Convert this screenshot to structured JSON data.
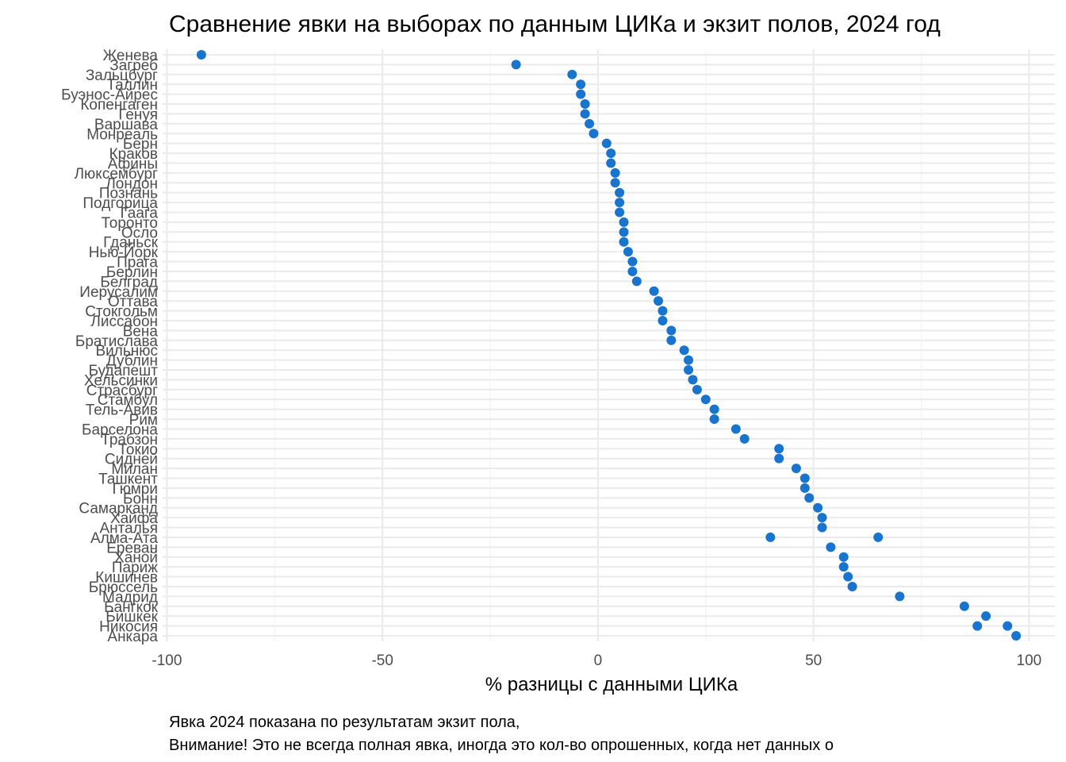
{
  "chart_data": {
    "type": "scatter",
    "title": "Сравнение явки на выборах по данным ЦИКа и экзит полов, 2024 год",
    "xlabel": "% разницы с данными ЦИКа",
    "ylabel": "",
    "xlim": [
      -101,
      106
    ],
    "xticks": [
      -100,
      -50,
      0,
      50,
      100
    ],
    "xtick_labels": [
      "-100",
      "-50",
      "0",
      "50",
      "100"
    ],
    "grid": true,
    "point_color": "#1874CD",
    "caption_lines": [
      "Явка 2024 показана по результатам экзит пола,",
      "Внимание! Это не всегда полная явка, иногда это кол-во опрошенных, когда нет данных о"
    ],
    "categories": [
      "Женева",
      "Загреб",
      "Зальцбург",
      "Таллин",
      "Буэнос-Айрес",
      "Копенгаген",
      "Генуя",
      "Варшава",
      "Монреаль",
      "Берн",
      "Краков",
      "Афины",
      "Люксембург",
      "Лондон",
      "Познань",
      "Подгорица",
      "Гаага",
      "Торонто",
      "Осло",
      "Гданьск",
      "Нью-Йорк",
      "Прага",
      "Берлин",
      "Белград",
      "Иерусалим",
      "Оттава",
      "Стокгольм",
      "Лиссабон",
      "Вена",
      "Братислава",
      "Вильнюс",
      "Дублин",
      "Будапешт",
      "Хельсинки",
      "Страсбург",
      "Стамбул",
      "Тель-Авив",
      "Рим",
      "Барселона",
      "Трабзон",
      "Токио",
      "Сидней",
      "Милан",
      "Ташкент",
      "Гюмри",
      "Бонн",
      "Самарканд",
      "Хайфа",
      "Анталья",
      "Алма-Ата",
      "Ереван",
      "Ханой",
      "Париж",
      "Кишинев",
      "Брюссель",
      "Мадрид",
      "Бангкок",
      "Бишкек",
      "Никосия",
      "Анкара"
    ],
    "points": [
      {
        "city": "Женева",
        "x": [
          -92
        ]
      },
      {
        "city": "Загреб",
        "x": [
          -19
        ]
      },
      {
        "city": "Зальцбург",
        "x": [
          -6
        ]
      },
      {
        "city": "Таллин",
        "x": [
          -4
        ]
      },
      {
        "city": "Буэнос-Айрес",
        "x": [
          -4
        ]
      },
      {
        "city": "Копенгаген",
        "x": [
          -3
        ]
      },
      {
        "city": "Генуя",
        "x": [
          -3
        ]
      },
      {
        "city": "Варшава",
        "x": [
          -2
        ]
      },
      {
        "city": "Монреаль",
        "x": [
          -1
        ]
      },
      {
        "city": "Берн",
        "x": [
          2
        ]
      },
      {
        "city": "Краков",
        "x": [
          3
        ]
      },
      {
        "city": "Афины",
        "x": [
          3
        ]
      },
      {
        "city": "Люксембург",
        "x": [
          4
        ]
      },
      {
        "city": "Лондон",
        "x": [
          4
        ]
      },
      {
        "city": "Познань",
        "x": [
          5
        ]
      },
      {
        "city": "Подгорица",
        "x": [
          5
        ]
      },
      {
        "city": "Гаага",
        "x": [
          5
        ]
      },
      {
        "city": "Торонто",
        "x": [
          6
        ]
      },
      {
        "city": "Осло",
        "x": [
          6
        ]
      },
      {
        "city": "Гданьск",
        "x": [
          6
        ]
      },
      {
        "city": "Нью-Йорк",
        "x": [
          7
        ]
      },
      {
        "city": "Прага",
        "x": [
          8
        ]
      },
      {
        "city": "Берлин",
        "x": [
          8
        ]
      },
      {
        "city": "Белград",
        "x": [
          9
        ]
      },
      {
        "city": "Иерусалим",
        "x": [
          13
        ]
      },
      {
        "city": "Оттава",
        "x": [
          14
        ]
      },
      {
        "city": "Стокгольм",
        "x": [
          15
        ]
      },
      {
        "city": "Лиссабон",
        "x": [
          15
        ]
      },
      {
        "city": "Вена",
        "x": [
          17
        ]
      },
      {
        "city": "Братислава",
        "x": [
          17
        ]
      },
      {
        "city": "Вильнюс",
        "x": [
          20
        ]
      },
      {
        "city": "Дублин",
        "x": [
          21
        ]
      },
      {
        "city": "Будапешт",
        "x": [
          21
        ]
      },
      {
        "city": "Хельсинки",
        "x": [
          22
        ]
      },
      {
        "city": "Страсбург",
        "x": [
          23
        ]
      },
      {
        "city": "Стамбул",
        "x": [
          25
        ]
      },
      {
        "city": "Тель-Авив",
        "x": [
          27
        ]
      },
      {
        "city": "Рим",
        "x": [
          27
        ]
      },
      {
        "city": "Барселона",
        "x": [
          32
        ]
      },
      {
        "city": "Трабзон",
        "x": [
          34
        ]
      },
      {
        "city": "Токио",
        "x": [
          42
        ]
      },
      {
        "city": "Сидней",
        "x": [
          42
        ]
      },
      {
        "city": "Милан",
        "x": [
          46
        ]
      },
      {
        "city": "Ташкент",
        "x": [
          48
        ]
      },
      {
        "city": "Гюмри",
        "x": [
          48
        ]
      },
      {
        "city": "Бонн",
        "x": [
          49
        ]
      },
      {
        "city": "Самарканд",
        "x": [
          51
        ]
      },
      {
        "city": "Хайфа",
        "x": [
          52
        ]
      },
      {
        "city": "Анталья",
        "x": [
          52
        ]
      },
      {
        "city": "Алма-Ата",
        "x": [
          40,
          65
        ]
      },
      {
        "city": "Ереван",
        "x": [
          54
        ]
      },
      {
        "city": "Ханой",
        "x": [
          57
        ]
      },
      {
        "city": "Париж",
        "x": [
          57
        ]
      },
      {
        "city": "Кишинев",
        "x": [
          58
        ]
      },
      {
        "city": "Брюссель",
        "x": [
          59
        ]
      },
      {
        "city": "Мадрид",
        "x": [
          70
        ]
      },
      {
        "city": "Бангкок",
        "x": [
          85
        ]
      },
      {
        "city": "Бишкек",
        "x": [
          90
        ]
      },
      {
        "city": "Никосия",
        "x": [
          88,
          95
        ]
      },
      {
        "city": "Анкара",
        "x": [
          97
        ]
      }
    ]
  }
}
